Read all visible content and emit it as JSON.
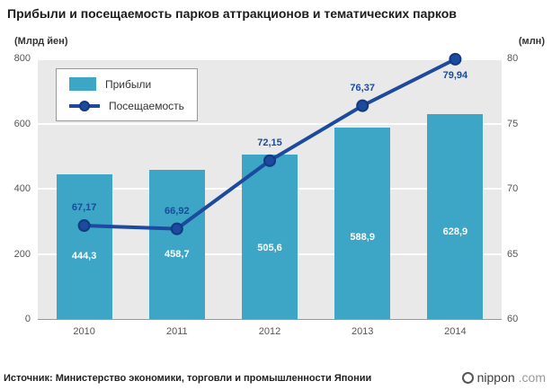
{
  "title": "Прибыли и посещаемость парков аттракционов и тематических парков",
  "colors": {
    "bar": "#3DA5C6",
    "line": "#1B4A9E",
    "line_dark": "#123A80",
    "plot_bg": "#E9E9E9"
  },
  "footer": {
    "source": "Источник: Министерство экономики, торговли и промышленности Японии",
    "logo_nippon": "nippon",
    "logo_com": ".com"
  },
  "chart_data": {
    "type": "bar+line",
    "title": "Прибыли и посещаемость парков аттракционов и тематических парков",
    "categories": [
      "2010",
      "2011",
      "2012",
      "2013",
      "2014"
    ],
    "series": [
      {
        "name": "Прибыли",
        "type": "bar",
        "axis": "left",
        "values": [
          444.3,
          458.7,
          505.6,
          588.9,
          628.9
        ],
        "labels": [
          "444,3",
          "458,7",
          "505,6",
          "588,9",
          "628,9"
        ]
      },
      {
        "name": "Посещаемость",
        "type": "line",
        "axis": "right",
        "values": [
          67.17,
          66.92,
          72.15,
          76.37,
          79.94
        ],
        "labels": [
          "67,17",
          "66,92",
          "72,15",
          "76,37",
          "79,94"
        ]
      }
    ],
    "left_axis": {
      "label": "(Млрд йен)",
      "ticks": [
        0,
        200,
        400,
        600,
        800
      ],
      "range": [
        0,
        800
      ]
    },
    "right_axis": {
      "label": "(млн)",
      "ticks": [
        60,
        65,
        70,
        75,
        80
      ],
      "range": [
        60,
        80
      ]
    },
    "legend_position": "top-left",
    "grid": true
  }
}
